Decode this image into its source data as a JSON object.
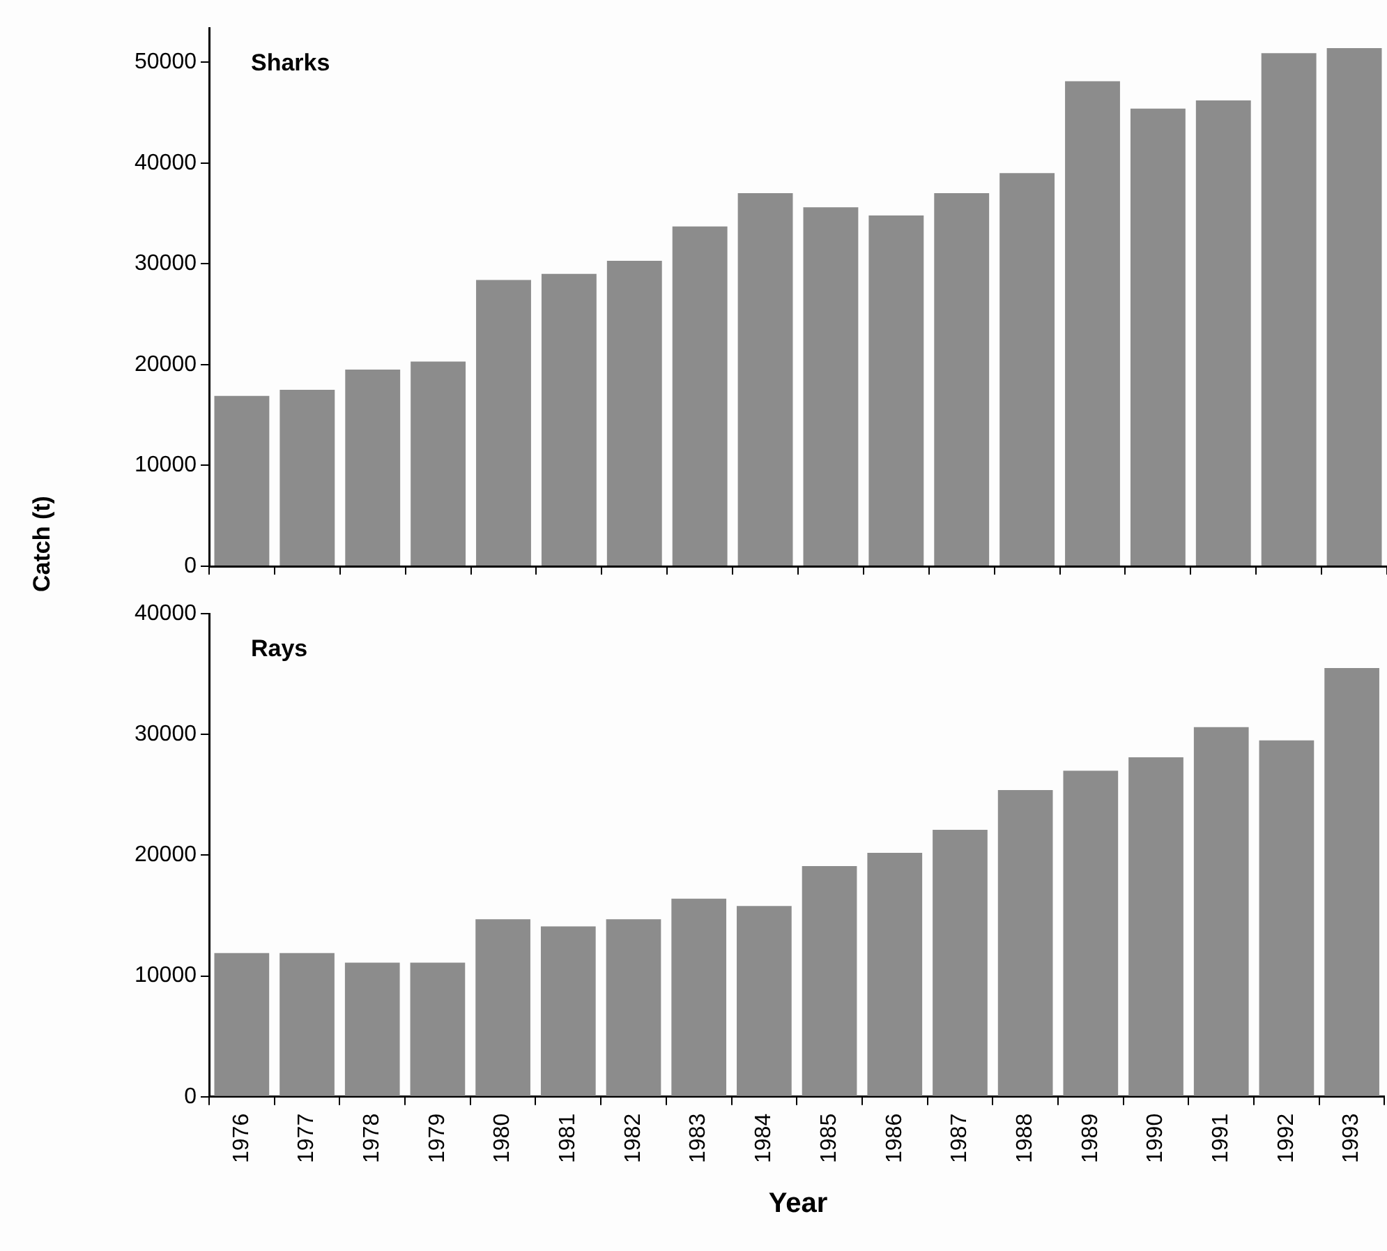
{
  "chart_data": [
    {
      "type": "bar",
      "title": "Sharks",
      "ylabel": "Catch (t)",
      "categories": [
        "1976",
        "1977",
        "1978",
        "1979",
        "1980",
        "1981",
        "1982",
        "1983",
        "1984",
        "1985",
        "1986",
        "1987",
        "1988",
        "1989",
        "1990",
        "1991",
        "1992",
        "1993"
      ],
      "values": [
        16900,
        17500,
        19500,
        20300,
        28400,
        29000,
        30300,
        33700,
        37000,
        35600,
        34800,
        37000,
        39000,
        48100,
        45400,
        46200,
        50900,
        51400
      ],
      "color": "#8c8c8c",
      "ylim": [
        0,
        53400
      ],
      "yticks": [
        0,
        10000,
        20000,
        30000,
        40000,
        50000
      ],
      "grid": false,
      "legend": false,
      "tick_labels": "y"
    },
    {
      "type": "bar",
      "title": "Rays",
      "xlabel": "Year",
      "categories": [
        "1976",
        "1977",
        "1978",
        "1979",
        "1980",
        "1981",
        "1982",
        "1983",
        "1984",
        "1985",
        "1986",
        "1987",
        "1988",
        "1989",
        "1990",
        "1991",
        "1992",
        "1993"
      ],
      "values": [
        11900,
        11900,
        11100,
        11100,
        14700,
        14100,
        14700,
        16400,
        15800,
        19100,
        20200,
        22100,
        25400,
        27000,
        28100,
        30600,
        29500,
        35500
      ],
      "color": "#8c8c8c",
      "ylim": [
        0,
        40000
      ],
      "yticks": [
        0,
        10000,
        20000,
        30000,
        40000
      ],
      "grid": false,
      "legend": false
    }
  ]
}
